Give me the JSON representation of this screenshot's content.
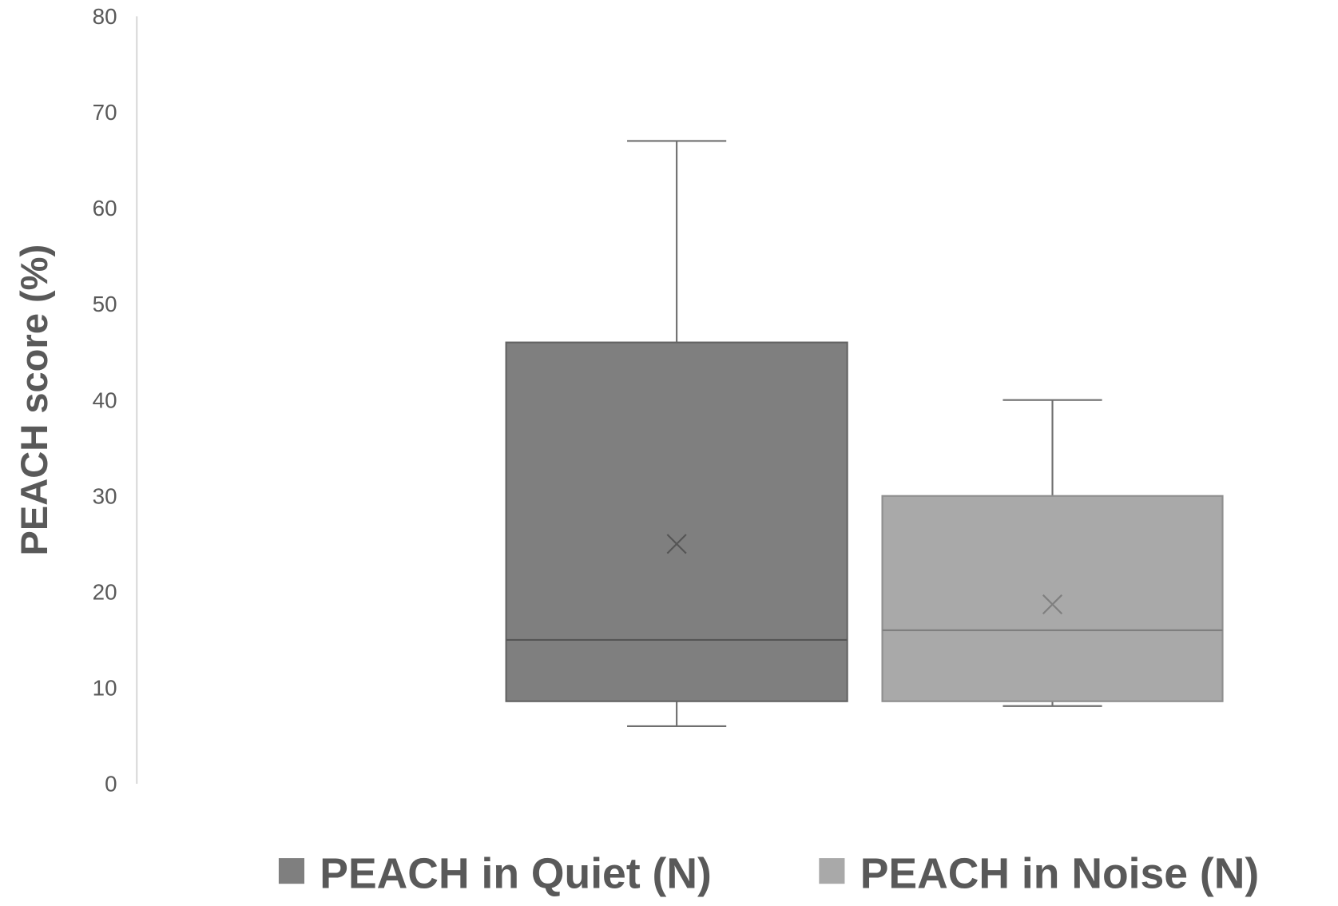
{
  "chart_data": {
    "type": "box",
    "title": "",
    "xlabel": "",
    "ylabel": "PEACH score (%)",
    "ylim": [
      0,
      80
    ],
    "yticks": [
      "0",
      "10",
      "20",
      "30",
      "40",
      "50",
      "60",
      "70",
      "80"
    ],
    "grid": false,
    "legend_position": "bottom",
    "series": [
      {
        "name": "PEACH in Quiet (N)",
        "color": "#7f7f7f",
        "min": 6,
        "q1": 8.6,
        "median": 15,
        "q3": 46,
        "max": 67,
        "mean": 25
      },
      {
        "name": "PEACH in Noise (N)",
        "color": "#a9a9a9",
        "min": 8.1,
        "q1": 8.6,
        "median": 16,
        "q3": 30,
        "max": 40,
        "mean": 18.7
      }
    ]
  }
}
